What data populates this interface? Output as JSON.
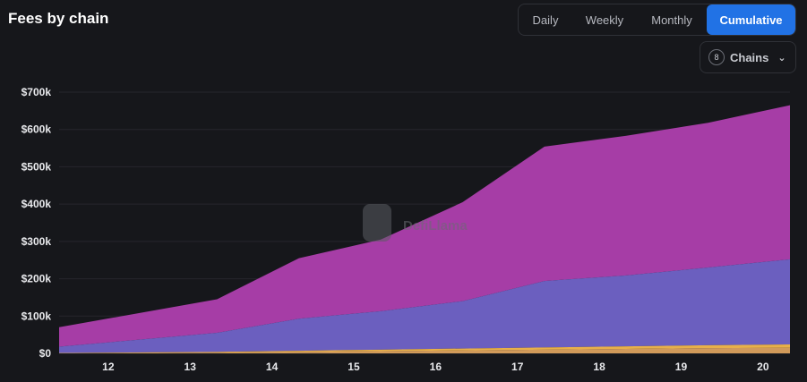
{
  "header": {
    "title": "Fees by chain",
    "tabs": [
      {
        "label": "Daily",
        "active": false
      },
      {
        "label": "Weekly",
        "active": false
      },
      {
        "label": "Monthly",
        "active": false
      },
      {
        "label": "Cumulative",
        "active": true
      }
    ],
    "chains_button": {
      "count": "8",
      "label": "Chains"
    }
  },
  "watermark": "DefiLlama",
  "chart_data": {
    "type": "area",
    "stacked": true,
    "x": [
      11.4,
      13.33,
      14.33,
      15.33,
      16.33,
      17.33,
      18.33,
      19.33,
      20.33
    ],
    "x_ticks": [
      "12",
      "13",
      "14",
      "15",
      "16",
      "17",
      "18",
      "19",
      "20"
    ],
    "xlim": [
      11.4,
      20.33
    ],
    "y_ticks": [
      "$0",
      "$100k",
      "$200k",
      "$300k",
      "$400k",
      "$500k",
      "$600k",
      "$700k"
    ],
    "ylim": [
      0,
      700000
    ],
    "grid": true,
    "series": [
      {
        "color": "#d19a5a",
        "values": [
          0,
          2000,
          4000,
          6000,
          8000,
          10000,
          12000,
          14000,
          15000
        ]
      },
      {
        "color": "#e8b04a",
        "values": [
          1000,
          2000,
          3000,
          4000,
          5000,
          6000,
          7000,
          8000,
          9000
        ]
      },
      {
        "color": "#6b5fbf",
        "values": [
          17000,
          51000,
          86000,
          103000,
          127000,
          178000,
          190000,
          208000,
          228000
        ]
      },
      {
        "color": "#a63da6",
        "values": [
          52000,
          90000,
          162000,
          192000,
          265000,
          360000,
          374000,
          388000,
          413000
        ]
      }
    ]
  }
}
